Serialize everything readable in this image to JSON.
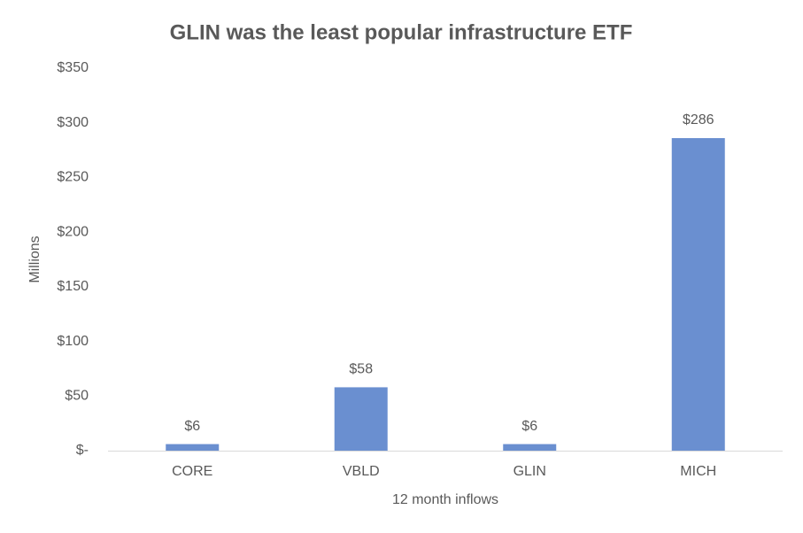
{
  "chart_data": {
    "type": "bar",
    "title": "GLIN was the least popular infrastructure ETF",
    "x_label": "12 month inflows",
    "y_label": "Millions",
    "categories": [
      "CORE",
      "VBLD",
      "GLIN",
      "MICH"
    ],
    "values": [
      6,
      58,
      6,
      286
    ],
    "value_labels": [
      "$6",
      "$58",
      "$6",
      "$286"
    ],
    "color": "#6a8fd0",
    "ylim": [
      0,
      350
    ],
    "yticks": [
      {
        "value": 0,
        "label": "$-"
      },
      {
        "value": 50,
        "label": "$50"
      },
      {
        "value": 100,
        "label": "$100"
      },
      {
        "value": 150,
        "label": "$150"
      },
      {
        "value": 200,
        "label": "$200"
      },
      {
        "value": 250,
        "label": "$250"
      },
      {
        "value": 300,
        "label": "$300"
      },
      {
        "value": 350,
        "label": "$350"
      }
    ],
    "grid": false
  }
}
